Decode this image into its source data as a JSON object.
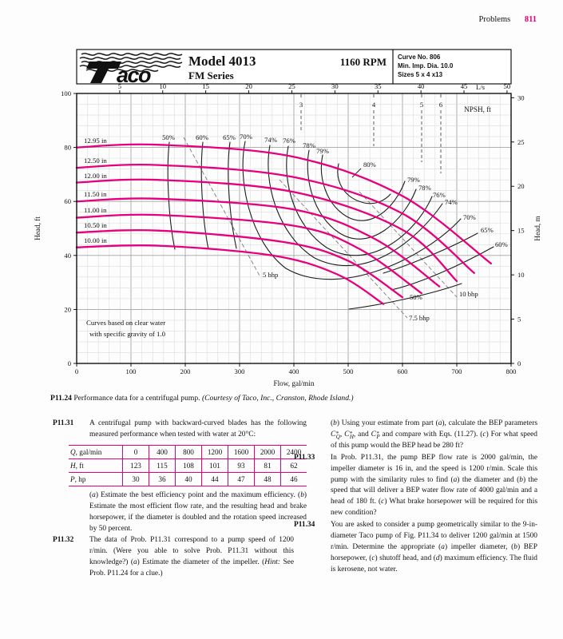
{
  "page": {
    "section_header": "Problems",
    "page_number": "811"
  },
  "figure": {
    "logo_text": "aco",
    "model": "Model 4013",
    "series_name": "FM Series",
    "rpm": "1160 RPM",
    "info_line1": "Curve No. 806",
    "info_line2": "Min. Imp. Dia. 10.0",
    "info_line3": "Sizes 5 x 4 x13",
    "note_line1": "Curves based on clear water",
    "note_line2": "with specific gravity of 1.0",
    "caption_number": "P11.24",
    "caption_text": " Performance data for a centrifugal pump. ",
    "caption_courtesy": "(Courtesy of Taco, Inc., Cranston, Rhode Island.)"
  },
  "chart_data": {
    "type": "line",
    "title": "Taco Model 4013 FM Series centrifugal pump performance at 1160 RPM",
    "xlabel": "Flow, gal/min",
    "ylabel_left": "Head, ft",
    "ylabel_right": "Head, m",
    "top_axis_unit": "L/s",
    "npsh_axis_label": "NPSH, ft",
    "xlim": [
      0,
      800
    ],
    "ylim_ft": [
      0,
      100
    ],
    "ylim_m": [
      0,
      30
    ],
    "grid": true,
    "x_ticks": [
      0,
      100,
      200,
      300,
      400,
      500,
      600,
      700,
      800
    ],
    "left_ticks_ft": [
      0,
      20,
      40,
      60,
      80,
      100
    ],
    "right_ticks_m": [
      0,
      5,
      10,
      15,
      20,
      25,
      30
    ],
    "top_ticks_Ls": [
      5,
      10,
      15,
      20,
      25,
      30,
      35,
      40,
      45,
      50
    ],
    "series": [
      {
        "name": "12.95 in",
        "points": [
          [
            0,
            80
          ],
          [
            150,
            81
          ],
          [
            400,
            76.5
          ],
          [
            600,
            62
          ],
          [
            763,
            37
          ]
        ]
      },
      {
        "name": "12.50 in",
        "points": [
          [
            0,
            72.5
          ],
          [
            150,
            73.5
          ],
          [
            400,
            69
          ],
          [
            600,
            55.5
          ],
          [
            732,
            33.5
          ]
        ]
      },
      {
        "name": "12.00 in",
        "points": [
          [
            0,
            67
          ],
          [
            150,
            68
          ],
          [
            400,
            63.5
          ],
          [
            600,
            49.5
          ],
          [
            700,
            30.5
          ]
        ]
      },
      {
        "name": "11.50 in",
        "points": [
          [
            0,
            60
          ],
          [
            150,
            61
          ],
          [
            400,
            57
          ],
          [
            550,
            46
          ],
          [
            668,
            28.5
          ]
        ]
      },
      {
        "name": "11.00 in",
        "points": [
          [
            0,
            54
          ],
          [
            150,
            55
          ],
          [
            400,
            51
          ],
          [
            520,
            42.5
          ],
          [
            635,
            26
          ]
        ]
      },
      {
        "name": "10.50 in",
        "points": [
          [
            0,
            48.5
          ],
          [
            150,
            49.2
          ],
          [
            380,
            45
          ],
          [
            500,
            38
          ],
          [
            600,
            24.5
          ]
        ]
      },
      {
        "name": "10.00 in",
        "points": [
          [
            0,
            43
          ],
          [
            150,
            43.6
          ],
          [
            360,
            40
          ],
          [
            480,
            33
          ],
          [
            565,
            22
          ]
        ]
      }
    ],
    "efficiency_labels_top": [
      "50%",
      "60%",
      "65%",
      "70%",
      "74%",
      "76%",
      "78%",
      "79%"
    ],
    "efficiency_label_inner": "80%",
    "efficiency_labels_right": [
      "79%",
      "78%",
      "76%",
      "74%",
      "70%",
      "65%",
      "60%"
    ],
    "efficiency_label_bottom": "50%",
    "npsh_values": [
      "3",
      "4",
      "5",
      "6"
    ],
    "bhp_labels": [
      "5 bhp",
      "7.5 bhp",
      "10 bhp"
    ],
    "units_note": "Curves based on clear water with specific gravity of 1.0"
  },
  "problems": {
    "p11_31": {
      "label": "P11.31",
      "intro": "A centrifugal pump with backward-curved blades has the following measured performance when tested with water at 20°C:",
      "followup_html": "(<i>a</i>) Estimate the best efficiency point and the maximum efficiency. (<i>b</i>) Estimate the most efficient flow rate, and the resulting head and brake horsepower, if the diameter is doubled and the rotation speed increased by 50 percent.",
      "table": {
        "rows": [
          {
            "var": "Q",
            "rest": ", gal/min",
            "values": [
              "0",
              "400",
              "800",
              "1200",
              "1600",
              "2000",
              "2400"
            ]
          },
          {
            "var": "H",
            "rest": ", ft",
            "values": [
              "123",
              "115",
              "108",
              "101",
              "93",
              "81",
              "62"
            ]
          },
          {
            "var": "P",
            "rest": ", hp",
            "values": [
              "30",
              "36",
              "40",
              "44",
              "47",
              "48",
              "46"
            ]
          }
        ]
      }
    },
    "p11_32": {
      "label": "P11.32",
      "text_html": "The data of Prob. P11.31 correspond to a pump speed of 1200 r/min. (Were you able to solve Prob. P11.31 without this knowledge?) (<i>a</i>) Estimate the diameter of the impeller. (<i>Hint:</i> See Prob. P11.24 for a clue.)",
      "cont_html": "(<i>b</i>) Using your estimate from part (<i>a</i>), calculate the BEP parameters <span class=\"csym\"><i>C</i><span class=\"scr\"><span>*</span><span class=\"s2\">Q</span></span></span>, <span class=\"csym\"><i>C</i><span class=\"scr\"><span>*</span><span class=\"s2\">H</span></span></span>, and <span class=\"csym\"><i>C</i><span class=\"scr\"><span>*</span><span class=\"s2\">P</span></span></span> and compare with Eqs. (11.27). (<i>c</i>) For what speed of this pump would the BEP head be 280 ft?"
    },
    "p11_33": {
      "label": "P11.33",
      "text_html": "In Prob. P11.31, the pump BEP flow rate is 2000 gal/min, the impeller diameter is 16 in, and the speed is 1200 r/min. Scale this pump with the similarity rules to find (<i>a</i>) the diameter and (<i>b</i>) the speed that will deliver a BEP water flow rate of 4000 gal/min and a head of 180 ft. (<i>c</i>) What brake horsepower will be required for this new condition?"
    },
    "p11_34": {
      "label": "P11.34",
      "text_html": "You are asked to consider a pump geometrically similar to the 9-in-diameter Taco pump of Fig. P11.34 to deliver 1200 gal/min at 1500 r/min. Determine the appropriate (<i>a</i>) impeller diameter, (<i>b</i>) BEP horsepower, (<i>c</i>) shutoff head, and (<i>d</i>) maximum efficiency. The fluid is kerosene, not water."
    }
  }
}
